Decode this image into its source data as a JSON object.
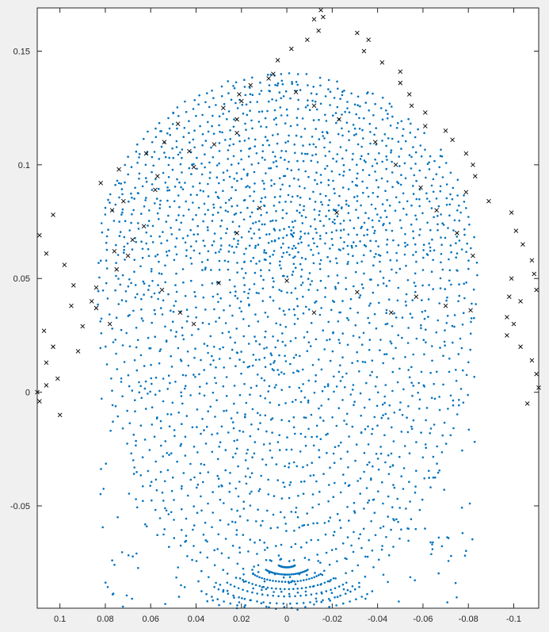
{
  "chart_data": {
    "type": "scatter",
    "title": "",
    "xlabel": "",
    "ylabel": "",
    "xlim": [
      0.11,
      -0.111
    ],
    "ylim": [
      -0.095,
      0.169
    ],
    "x_direction": "reversed",
    "grid": false,
    "legend": "none",
    "xticks": [
      0.1,
      0.08,
      0.06,
      0.04,
      0.02,
      0,
      -0.02,
      -0.04,
      -0.06,
      -0.08,
      -0.1
    ],
    "xtick_labels": [
      "0.1",
      "0.08",
      "0.06",
      "0.04",
      "0.02",
      "0",
      "-0.02",
      "-0.04",
      "-0.06",
      "-0.08",
      "-0.1"
    ],
    "yticks": [
      0.15,
      0.1,
      0.05,
      0,
      -0.05
    ],
    "ytick_labels": [
      "0.15",
      "0.1",
      "0.05",
      "0",
      "-0.05"
    ],
    "series": [
      {
        "marker": "dot",
        "color": "#0072bd",
        "shape": "capsule",
        "x_range": [
          0.083,
          -0.083
        ],
        "y_range": [
          -0.095,
          0.14
        ],
        "approx_points": 2400,
        "description_note": ""
      },
      {
        "marker": "x",
        "color": "#000000",
        "x": [
          0.103,
          0.109,
          0.106,
          0.098,
          0.094,
          0.095,
          0.084,
          0.09,
          0.107,
          0.103,
          0.106,
          0.101,
          0.11,
          0.109,
          0.1,
          0.106,
          0.092,
          0.078,
          0.086,
          0.084,
          0.075,
          0.076,
          0.068,
          0.063,
          0.077,
          0.072,
          0.058,
          0.057,
          0.041,
          0.043,
          0.032,
          0.022,
          0.022,
          0.02,
          0.016,
          0.006,
          0.004,
          -0.002,
          -0.009,
          -0.014,
          -0.012,
          -0.015,
          -0.016,
          -0.031,
          -0.036,
          -0.034,
          -0.042,
          -0.05,
          -0.05,
          -0.054,
          -0.055,
          -0.061,
          -0.061,
          -0.07,
          -0.073,
          -0.079,
          -0.082,
          -0.083,
          -0.079,
          -0.089,
          -0.099,
          -0.101,
          -0.104,
          -0.108,
          -0.109,
          -0.11,
          -0.103,
          -0.097,
          -0.097,
          -0.103,
          -0.108,
          -0.11,
          -0.111,
          -0.106,
          -0.1,
          -0.098,
          -0.099,
          -0.082,
          -0.075,
          -0.066,
          -0.059,
          -0.048,
          -0.039,
          -0.023,
          -0.012,
          -0.004,
          0.008,
          0.021,
          0.028,
          0.048,
          0.054,
          0.062,
          0.074,
          0.082,
          0.07,
          0.055,
          0.047,
          0.041,
          0.03,
          0.022,
          0.012,
          0.0,
          -0.012,
          -0.022,
          -0.031,
          -0.046,
          -0.057,
          -0.07,
          -0.081
        ],
        "y": [
          0.078,
          0.069,
          0.061,
          0.056,
          0.047,
          0.038,
          0.037,
          0.029,
          0.027,
          0.02,
          0.013,
          0.006,
          0.0,
          -0.004,
          -0.01,
          0.003,
          0.018,
          0.03,
          0.04,
          0.046,
          0.054,
          0.062,
          0.067,
          0.073,
          0.08,
          0.084,
          0.089,
          0.095,
          0.099,
          0.106,
          0.109,
          0.114,
          0.12,
          0.128,
          0.135,
          0.14,
          0.146,
          0.151,
          0.155,
          0.159,
          0.164,
          0.168,
          0.165,
          0.158,
          0.155,
          0.15,
          0.145,
          0.141,
          0.136,
          0.131,
          0.126,
          0.123,
          0.117,
          0.115,
          0.111,
          0.105,
          0.1,
          0.095,
          0.088,
          0.084,
          0.079,
          0.071,
          0.065,
          0.058,
          0.052,
          0.045,
          0.04,
          0.033,
          0.025,
          0.02,
          0.014,
          0.008,
          0.002,
          -0.005,
          0.03,
          0.042,
          0.05,
          0.06,
          0.07,
          0.08,
          0.09,
          0.1,
          0.11,
          0.12,
          0.126,
          0.132,
          0.138,
          0.131,
          0.125,
          0.118,
          0.11,
          0.105,
          0.098,
          0.092,
          0.06,
          0.045,
          0.035,
          0.03,
          0.048,
          0.07,
          0.081,
          0.049,
          0.035,
          0.079,
          0.044,
          0.035,
          0.042,
          0.038,
          0.036
        ]
      }
    ]
  }
}
